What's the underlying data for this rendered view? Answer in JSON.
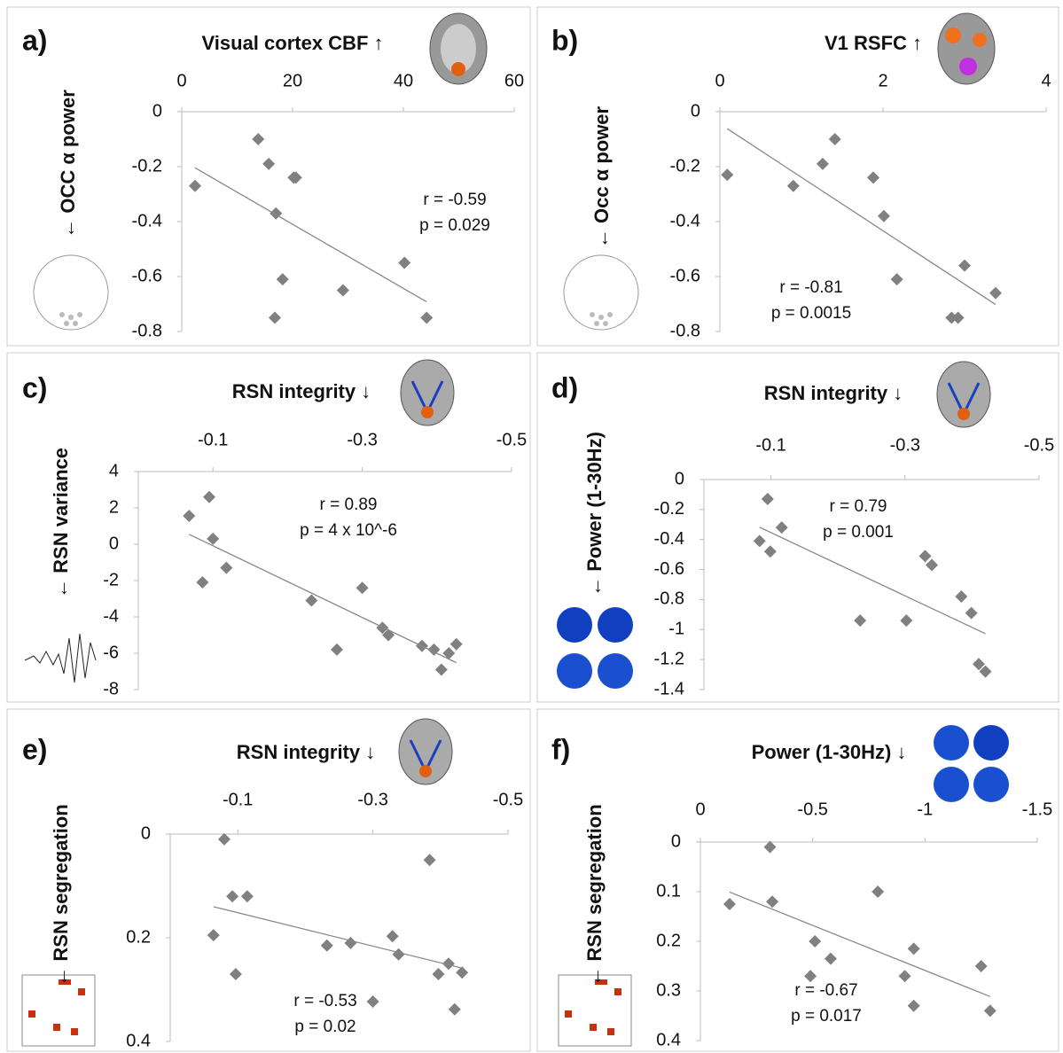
{
  "chart_data": [
    {
      "type": "scatter",
      "panel_label": "a)",
      "xlabel": "Visual cortex CBF ↑",
      "ylabel": "← OCC α power",
      "annotations": [
        "r = -0.59",
        "p = 0.029"
      ],
      "color": "#808080",
      "trendline": true,
      "xlim": [
        0,
        60
      ],
      "xticks": [
        0,
        20,
        40,
        60
      ],
      "ylim": [
        -0.8,
        0
      ],
      "yticks": [
        0,
        -0.2,
        -0.4,
        -0.6,
        -0.8
      ],
      "x": [
        2.4,
        13.8,
        15.7,
        17,
        20.2,
        20.6,
        18.2,
        16.8,
        29.1,
        40.2,
        44.2
      ],
      "values": [
        -0.27,
        -0.1,
        -0.19,
        -0.37,
        -0.24,
        -0.24,
        -0.61,
        -0.75,
        -0.65,
        -0.55,
        -0.75
      ]
    },
    {
      "type": "scatter",
      "panel_label": "b)",
      "xlabel": "V1 RSFC ↑",
      "ylabel": "← Occ α power",
      "annotations": [
        "r = -0.81",
        "p = 0.0015"
      ],
      "color": "#808080",
      "trendline": true,
      "xlim": [
        0,
        4
      ],
      "xticks": [
        0,
        2,
        4
      ],
      "ylim": [
        -0.8,
        0
      ],
      "yticks": [
        0,
        -0.2,
        -0.4,
        -0.6,
        -0.8
      ],
      "x": [
        0.09,
        0.9,
        1.26,
        1.41,
        1.88,
        2.01,
        2.17,
        3.0,
        2.84,
        2.92,
        3.38
      ],
      "values": [
        -0.23,
        -0.27,
        -0.19,
        -0.1,
        -0.24,
        -0.38,
        -0.61,
        -0.56,
        -0.75,
        -0.75,
        -0.66
      ]
    },
    {
      "type": "scatter",
      "panel_label": "c)",
      "xlabel": "RSN integrity ↓",
      "ylabel": "← RSN variance",
      "annotations": [
        "r = 0.89",
        "p = 4 x 10^-6"
      ],
      "color": "#808080",
      "trendline": true,
      "xlim": [
        0,
        -0.5
      ],
      "xticks": [
        -0.1,
        -0.3,
        -0.5
      ],
      "ylim": [
        -8,
        4
      ],
      "yticks": [
        4,
        2,
        0,
        -2,
        -4,
        -6,
        -8
      ],
      "x": [
        -0.068,
        -0.095,
        -0.086,
        -0.1,
        -0.118,
        -0.232,
        -0.266,
        -0.3,
        -0.327,
        -0.335,
        -0.38,
        -0.396,
        -0.406,
        -0.416,
        -0.426
      ],
      "values": [
        1.56,
        2.6,
        -2.1,
        0.3,
        -1.3,
        -3.1,
        -5.8,
        -2.4,
        -4.6,
        -5.0,
        -5.6,
        -5.8,
        -6.9,
        -6.0,
        -5.5
      ]
    },
    {
      "type": "scatter",
      "panel_label": "d)",
      "xlabel": "RSN integrity ↓",
      "ylabel": "← Power (1-30Hz)",
      "annotations": [
        "r = 0.79",
        "p = 0.001"
      ],
      "color": "#808080",
      "trendline": true,
      "xlim": [
        0,
        -0.5
      ],
      "xticks": [
        -0.1,
        -0.3,
        -0.5
      ],
      "ylim": [
        -1.4,
        0
      ],
      "yticks": [
        0,
        -0.2,
        -0.4,
        -0.6,
        -0.8,
        -1,
        -1.2,
        -1.4
      ],
      "x": [
        -0.095,
        -0.116,
        -0.083,
        -0.099,
        -0.33,
        -0.34,
        -0.233,
        -0.302,
        -0.384,
        -0.399,
        -0.41,
        -0.42
      ],
      "values": [
        -0.13,
        -0.32,
        -0.41,
        -0.48,
        -0.51,
        -0.57,
        -0.94,
        -0.94,
        -0.78,
        -0.89,
        -1.23,
        -1.28
      ]
    },
    {
      "type": "scatter",
      "panel_label": "e)",
      "xlabel": "RSN integrity ↓",
      "ylabel": "← RSN segregation",
      "annotations": [
        "r = -0.53",
        "p = 0.02"
      ],
      "color": "#808080",
      "trendline": true,
      "xlim": [
        0,
        -0.5
      ],
      "xticks": [
        -0.1,
        -0.3,
        -0.5
      ],
      "ylim": [
        0.4,
        0
      ],
      "yticks": [
        0,
        0.2,
        0.4
      ],
      "x": [
        -0.08,
        -0.092,
        -0.114,
        -0.064,
        -0.097,
        -0.232,
        -0.267,
        -0.329,
        -0.338,
        -0.384,
        -0.397,
        -0.412,
        -0.432,
        -0.421,
        -0.3
      ],
      "values": [
        0.01,
        0.12,
        0.12,
        0.195,
        0.27,
        0.215,
        0.21,
        0.197,
        0.232,
        0.05,
        0.27,
        0.25,
        0.267,
        0.338,
        0.323
      ]
    },
    {
      "type": "scatter",
      "panel_label": "f)",
      "xlabel": "Power (1-30Hz) ↓",
      "ylabel": "← RSN segregation",
      "annotations": [
        "r = -0.67",
        "p = 0.017"
      ],
      "color": "#808080",
      "trendline": true,
      "xlim": [
        0,
        -1.5
      ],
      "xticks": [
        0,
        -0.5,
        -1,
        -1.5
      ],
      "ylim": [
        0.4,
        0
      ],
      "yticks": [
        0,
        0.1,
        0.2,
        0.3,
        0.4
      ],
      "x": [
        -0.13,
        -0.32,
        -0.31,
        -0.51,
        -0.49,
        -0.58,
        -0.79,
        -0.95,
        -0.91,
        -0.95,
        -1.25,
        -1.29
      ],
      "values": [
        0.125,
        0.12,
        0.01,
        0.2,
        0.27,
        0.235,
        0.1,
        0.215,
        0.27,
        0.33,
        0.25,
        0.34
      ]
    }
  ]
}
